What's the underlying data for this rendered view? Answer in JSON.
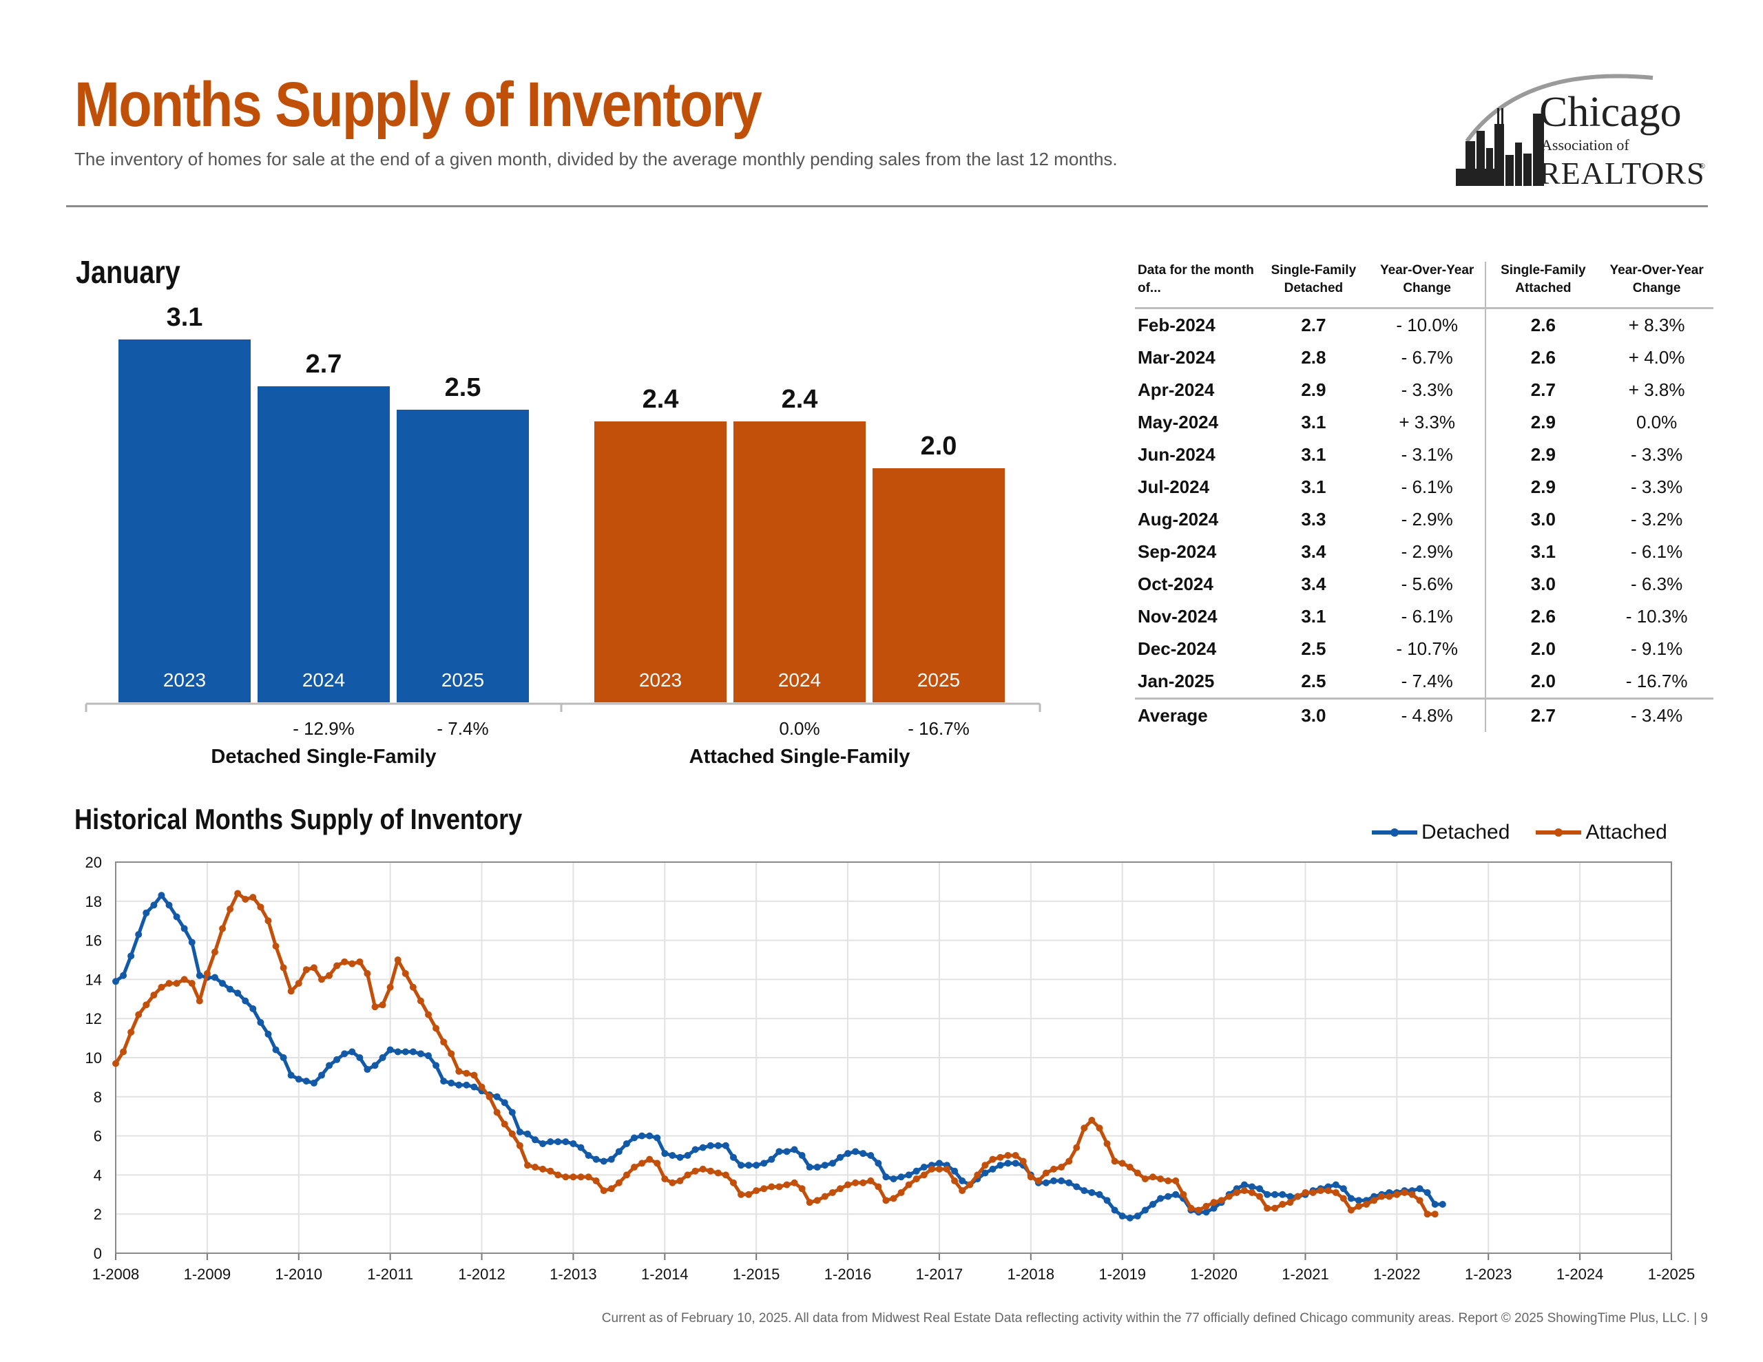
{
  "header": {
    "title": "Months Supply of Inventory",
    "subtitle": "The inventory of homes for sale at the end of a given month, divided by the average monthly pending sales from the last 12 months."
  },
  "logo": {
    "line1": "Chicago",
    "line2": "Association of",
    "line3": "REALTORS",
    "mark": "®"
  },
  "bar_section": {
    "title": "January"
  },
  "table": {
    "headers": [
      "Data for the month of...",
      "Single-Family Detached",
      "Year-Over-Year Change",
      "Single-Family Attached",
      "Year-Over-Year Change"
    ],
    "rows": [
      [
        "Feb-2024",
        "2.7",
        "- 10.0%",
        "2.6",
        "+ 8.3%"
      ],
      [
        "Mar-2024",
        "2.8",
        "- 6.7%",
        "2.6",
        "+ 4.0%"
      ],
      [
        "Apr-2024",
        "2.9",
        "- 3.3%",
        "2.7",
        "+ 3.8%"
      ],
      [
        "May-2024",
        "3.1",
        "+ 3.3%",
        "2.9",
        "0.0%"
      ],
      [
        "Jun-2024",
        "3.1",
        "- 3.1%",
        "2.9",
        "- 3.3%"
      ],
      [
        "Jul-2024",
        "3.1",
        "- 6.1%",
        "2.9",
        "- 3.3%"
      ],
      [
        "Aug-2024",
        "3.3",
        "- 2.9%",
        "3.0",
        "- 3.2%"
      ],
      [
        "Sep-2024",
        "3.4",
        "- 2.9%",
        "3.1",
        "- 6.1%"
      ],
      [
        "Oct-2024",
        "3.4",
        "- 5.6%",
        "3.0",
        "- 6.3%"
      ],
      [
        "Nov-2024",
        "3.1",
        "- 6.1%",
        "2.6",
        "- 10.3%"
      ],
      [
        "Dec-2024",
        "2.5",
        "- 10.7%",
        "2.0",
        "- 9.1%"
      ],
      [
        "Jan-2025",
        "2.5",
        "- 7.4%",
        "2.0",
        "- 16.7%"
      ]
    ],
    "average": [
      "Average",
      "3.0",
      "- 4.8%",
      "2.7",
      "- 3.4%"
    ]
  },
  "history": {
    "title": "Historical Months Supply of Inventory"
  },
  "footer": "Current as of February 10, 2025.  All data from Midwest Real Estate Data reflecting activity within the 77 officially defined Chicago community areas. Report © 2025 ShowingTime Plus, LLC.  |  9",
  "colors": {
    "detached": "#1259a8",
    "attached": "#c2500a",
    "title": "#c05008"
  },
  "chart_data": [
    {
      "type": "bar",
      "title": "January",
      "groups": [
        {
          "name": "Detached Single-Family",
          "color": "#1259a8",
          "categories": [
            "2023",
            "2024",
            "2025"
          ],
          "values": [
            3.1,
            2.7,
            2.5
          ],
          "value_labels": [
            "3.1",
            "2.7",
            "2.5"
          ],
          "changes": [
            "",
            "- 12.9%",
            "- 7.4%"
          ]
        },
        {
          "name": "Attached Single-Family",
          "color": "#c2500a",
          "categories": [
            "2023",
            "2024",
            "2025"
          ],
          "values": [
            2.4,
            2.4,
            2.0
          ],
          "value_labels": [
            "2.4",
            "2.4",
            "2.0"
          ],
          "changes": [
            "",
            "0.0%",
            "- 16.7%"
          ]
        }
      ],
      "ylim": [
        0,
        3.5
      ]
    },
    {
      "type": "line",
      "title": "Historical Months Supply of Inventory",
      "x_start": "1-2008",
      "x_ticks": [
        "1-2008",
        "1-2009",
        "1-2010",
        "1-2011",
        "1-2012",
        "1-2013",
        "1-2014",
        "1-2015",
        "1-2016",
        "1-2017",
        "1-2018",
        "1-2019",
        "1-2020",
        "1-2021",
        "1-2022",
        "1-2023",
        "1-2024",
        "1-2025"
      ],
      "y_ticks": [
        0,
        2,
        4,
        6,
        8,
        10,
        12,
        14,
        16,
        18,
        20
      ],
      "ylim": [
        0,
        20
      ],
      "grid": true,
      "legend": "top-right",
      "series": [
        {
          "name": "Detached",
          "color": "#1259a8",
          "values": [
            13.9,
            14.2,
            15.2,
            16.3,
            17.4,
            17.8,
            18.3,
            17.8,
            17.2,
            16.6,
            15.9,
            14.2,
            14.1,
            14.1,
            13.8,
            13.5,
            13.3,
            12.9,
            12.5,
            11.8,
            11.2,
            10.4,
            10.0,
            9.1,
            8.9,
            8.8,
            8.7,
            9.1,
            9.6,
            9.9,
            10.2,
            10.3,
            10.0,
            9.4,
            9.6,
            10.0,
            10.4,
            10.3,
            10.3,
            10.3,
            10.2,
            10.1,
            9.6,
            8.8,
            8.7,
            8.6,
            8.6,
            8.5,
            8.3,
            8.1,
            8.0,
            7.7,
            7.2,
            6.2,
            6.1,
            5.8,
            5.6,
            5.7,
            5.7,
            5.7,
            5.6,
            5.4,
            5.0,
            4.8,
            4.7,
            4.8,
            5.2,
            5.6,
            5.9,
            6.0,
            6.0,
            5.9,
            5.1,
            5.0,
            4.9,
            5.0,
            5.3,
            5.4,
            5.5,
            5.5,
            5.5,
            4.9,
            4.5,
            4.5,
            4.5,
            4.6,
            4.8,
            5.2,
            5.2,
            5.3,
            5.0,
            4.4,
            4.4,
            4.5,
            4.6,
            4.9,
            5.1,
            5.2,
            5.1,
            5.0,
            4.6,
            3.9,
            3.8,
            3.9,
            4.0,
            4.2,
            4.4,
            4.5,
            4.6,
            4.5,
            4.2,
            3.7,
            3.5,
            3.8,
            4.1,
            4.3,
            4.5,
            4.6,
            4.6,
            4.5,
            4.0,
            3.6,
            3.6,
            3.7,
            3.7,
            3.6,
            3.4,
            3.2,
            3.1,
            3.0,
            2.7,
            2.2,
            1.9,
            1.8,
            1.9,
            2.2,
            2.5,
            2.8,
            2.9,
            3.0,
            2.8,
            2.2,
            2.1,
            2.1,
            2.3,
            2.6,
            3.0,
            3.3,
            3.5,
            3.4,
            3.3,
            3.0,
            3.0,
            3.0,
            2.9,
            2.9,
            3.0,
            3.2,
            3.3,
            3.4,
            3.5,
            3.3,
            2.8,
            2.7,
            2.7,
            2.9,
            3.0,
            3.1,
            3.1,
            3.2,
            3.2,
            3.3,
            3.1,
            2.5,
            2.5
          ]
        },
        {
          "name": "Attached",
          "color": "#c2500a",
          "values": [
            9.7,
            10.3,
            11.3,
            12.2,
            12.7,
            13.2,
            13.6,
            13.8,
            13.8,
            14.0,
            13.8,
            12.9,
            14.3,
            15.4,
            16.6,
            17.6,
            18.4,
            18.1,
            18.2,
            17.7,
            17.0,
            15.7,
            14.6,
            13.4,
            13.8,
            14.5,
            14.6,
            14.0,
            14.2,
            14.7,
            14.9,
            14.8,
            14.9,
            14.3,
            12.6,
            12.7,
            13.6,
            15.0,
            14.3,
            13.6,
            12.9,
            12.2,
            11.5,
            10.8,
            10.2,
            9.3,
            9.2,
            9.1,
            8.5,
            8.0,
            7.2,
            6.6,
            6.1,
            5.5,
            4.5,
            4.4,
            4.3,
            4.2,
            4.0,
            3.9,
            3.9,
            3.9,
            3.9,
            3.7,
            3.2,
            3.3,
            3.6,
            4.0,
            4.4,
            4.6,
            4.8,
            4.6,
            3.8,
            3.6,
            3.7,
            4.0,
            4.2,
            4.3,
            4.2,
            4.1,
            4.0,
            3.6,
            3.0,
            3.0,
            3.2,
            3.3,
            3.4,
            3.4,
            3.5,
            3.6,
            3.3,
            2.6,
            2.7,
            2.9,
            3.1,
            3.3,
            3.5,
            3.6,
            3.6,
            3.7,
            3.4,
            2.7,
            2.8,
            3.1,
            3.5,
            3.8,
            4.0,
            4.3,
            4.3,
            4.3,
            3.7,
            3.2,
            3.5,
            4.0,
            4.5,
            4.8,
            4.9,
            5.0,
            5.0,
            4.7,
            3.9,
            3.7,
            4.1,
            4.3,
            4.4,
            4.7,
            5.4,
            6.4,
            6.8,
            6.4,
            5.6,
            4.7,
            4.6,
            4.4,
            4.1,
            3.8,
            3.9,
            3.8,
            3.7,
            3.7,
            3.0,
            2.3,
            2.2,
            2.4,
            2.6,
            2.7,
            2.9,
            3.1,
            3.2,
            3.1,
            2.9,
            2.3,
            2.3,
            2.5,
            2.6,
            2.9,
            3.1,
            3.1,
            3.2,
            3.2,
            3.1,
            2.8,
            2.2,
            2.4,
            2.5,
            2.7,
            2.9,
            2.9,
            3.0,
            3.1,
            3.0,
            2.7,
            2.0,
            2.0
          ]
        }
      ]
    }
  ]
}
